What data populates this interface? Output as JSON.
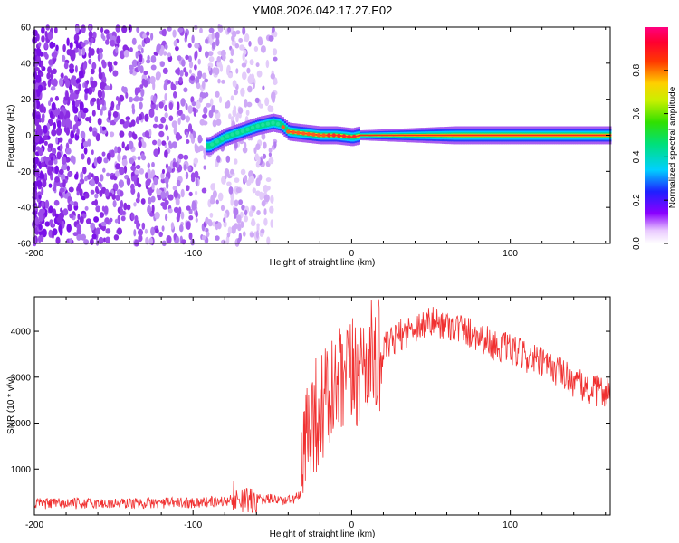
{
  "chart_data": [
    {
      "type": "heatmap",
      "title": "YM08.2026.042.17.27.E02",
      "xlabel": "Height of straight line (km)",
      "ylabel": "Frequency (Hz)",
      "xlim": [
        -200,
        163
      ],
      "ylim": [
        -60,
        60
      ],
      "x_ticks": [
        -200,
        -100,
        0,
        100
      ],
      "y_ticks": [
        -60,
        -40,
        -20,
        0,
        20,
        40,
        60
      ],
      "grid": false,
      "ridge": {
        "x": [
          -90,
          -80,
          -70,
          -60,
          -50,
          -45,
          -40,
          -30,
          -20,
          -10,
          0,
          5,
          50,
          100,
          163
        ],
        "y": [
          -6,
          -1,
          2,
          5,
          7,
          6,
          2,
          1,
          0,
          0,
          -1,
          0,
          0,
          0,
          0
        ]
      },
      "noise_region_x": [
        -200,
        -48
      ],
      "colorbar": {
        "label": "Normalized spectral amplitude",
        "range": [
          0,
          1
        ],
        "ticks": [
          0.0,
          0.2,
          0.4,
          0.6,
          0.8
        ],
        "tick_labels": [
          "0.0",
          "0.2",
          "0.4",
          "0.6",
          "0.8"
        ]
      }
    },
    {
      "type": "line",
      "title": "",
      "xlabel": "Height of straight line (km)",
      "ylabel": "SNR (10 * v/v)",
      "xlim": [
        -200,
        163
      ],
      "ylim": [
        0,
        4750
      ],
      "x_ticks": [
        -200,
        -100,
        0,
        100
      ],
      "y_ticks": [
        1000,
        2000,
        3000,
        4000
      ],
      "color": "#f03030",
      "envelope": {
        "x": [
          -200,
          -150,
          -100,
          -80,
          -70,
          -60,
          -50,
          -40,
          -32,
          -28,
          -20,
          -10,
          0,
          10,
          20,
          30,
          40,
          50,
          60,
          70,
          80,
          90,
          100,
          110,
          120,
          130,
          140,
          150,
          163
        ],
        "y": [
          250,
          250,
          270,
          300,
          350,
          330,
          350,
          300,
          420,
          2000,
          2300,
          2700,
          3000,
          3400,
          3600,
          3900,
          4100,
          4200,
          4150,
          4050,
          3900,
          3700,
          3600,
          3450,
          3300,
          3150,
          2900,
          2700,
          2700
        ]
      }
    }
  ]
}
